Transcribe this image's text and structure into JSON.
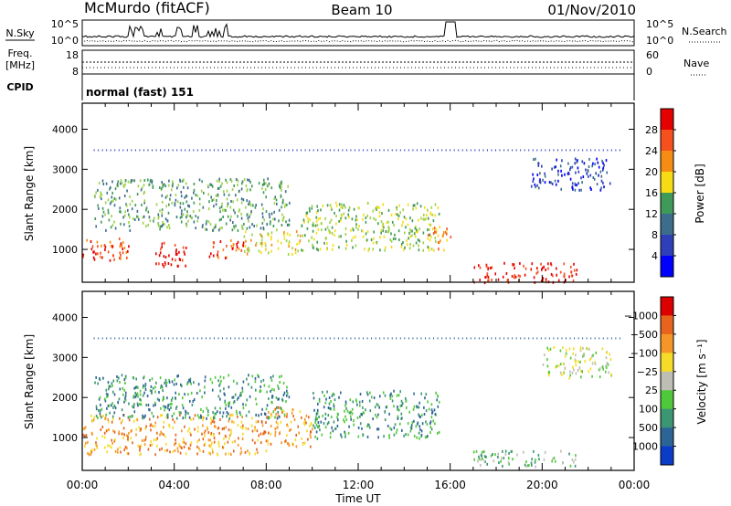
{
  "header": {
    "title": "McMurdo (fitACF)",
    "beam": "Beam 10",
    "date": "01/Nov/2010"
  },
  "top_panels": {
    "nsky_label": "N.Sky",
    "nsearch_label": "N.Search",
    "noise_ticks": [
      "10^5",
      "10^0"
    ],
    "freq_label": "Freq.",
    "freq_unit": "[MHz]",
    "freq_ticks": [
      "18",
      "8"
    ],
    "nave_label": "Nave",
    "nave_ticks": [
      "60",
      "0"
    ],
    "cpid_label": "CPID",
    "cpid_value": "normal (fast) 151"
  },
  "colors": {
    "power_scale": [
      "#0000ff",
      "#2f3fb8",
      "#3c6e8c",
      "#3f9a5a",
      "#9dd24a",
      "#f5dc14",
      "#f58c14",
      "#f5501e",
      "#e60000"
    ],
    "velocity_scale": [
      "#0a3cc8",
      "#2d6496",
      "#3c9673",
      "#50c83c",
      "#bebeb4",
      "#f5dc28",
      "#f59628",
      "#e6641e",
      "#dc0000"
    ]
  },
  "chart_data": [
    {
      "type": "heatmap",
      "quantity": "Power",
      "ylabel": "Slant Range [km]",
      "ylim": [
        180,
        4650
      ],
      "yticks": [
        1000,
        2000,
        3000,
        4000
      ],
      "xlim": [
        0,
        24
      ],
      "xticks": [
        "00:00",
        "04:00",
        "08:00",
        "12:00",
        "16:00",
        "20:00",
        "00:00"
      ],
      "colorbar_label": "Power [dB]",
      "colorbar_ticks": [
        "4",
        "8",
        "12",
        "16",
        "20",
        "24",
        "28"
      ],
      "scatter_regions": [
        {
          "t0": 0.0,
          "t1": 2.0,
          "r0": 700,
          "r1": 1300,
          "level": 7
        },
        {
          "t0": 3.0,
          "t1": 4.5,
          "r0": 600,
          "r1": 1200,
          "level": 8
        },
        {
          "t0": 5.5,
          "t1": 7.0,
          "r0": 800,
          "r1": 1300,
          "level": 7
        },
        {
          "t0": 7.0,
          "t1": 9.5,
          "r0": 900,
          "r1": 1500,
          "level": 5
        },
        {
          "t0": 9.5,
          "t1": 15.5,
          "r0": 1000,
          "r1": 2200,
          "level": 4
        },
        {
          "t0": 15.0,
          "t1": 16.0,
          "r0": 1000,
          "r1": 1600,
          "level": 6
        },
        {
          "t0": 17.0,
          "t1": 21.5,
          "r0": 200,
          "r1": 700,
          "level": 8
        },
        {
          "t0": 19.5,
          "t1": 23.0,
          "r0": 2500,
          "r1": 3300,
          "level": 1
        },
        {
          "t0": 0.5,
          "t1": 9.0,
          "r0": 1500,
          "r1": 2800,
          "level": 3
        }
      ]
    },
    {
      "type": "heatmap",
      "quantity": "Velocity",
      "ylabel": "Slant Range [km]",
      "ylim": [
        180,
        4650
      ],
      "yticks": [
        1000,
        2000,
        3000,
        4000
      ],
      "xlim": [
        0,
        24
      ],
      "xticks": [
        "00:00",
        "04:00",
        "08:00",
        "12:00",
        "16:00",
        "20:00",
        "00:00"
      ],
      "xlabel": "Time UT",
      "colorbar_label": "Velocity [m s⁻¹]",
      "colorbar_ticks": [
        "1000",
        "500",
        "100",
        "25",
        "−25",
        "−100",
        "−500",
        "−1000"
      ],
      "scatter_regions": [
        {
          "t0": 0.0,
          "t1": 8.0,
          "r0": 600,
          "r1": 1600,
          "level": 6
        },
        {
          "t0": 8.0,
          "t1": 10.0,
          "r0": 800,
          "r1": 1800,
          "level": 6
        },
        {
          "t0": 10.0,
          "t1": 15.5,
          "r0": 1000,
          "r1": 2200,
          "level": 2
        },
        {
          "t0": 17.0,
          "t1": 21.5,
          "r0": 300,
          "r1": 700,
          "level": 3
        },
        {
          "t0": 20.0,
          "t1": 23.0,
          "r0": 2500,
          "r1": 3300,
          "level": 4
        },
        {
          "t0": 0.5,
          "t1": 9.0,
          "r0": 1500,
          "r1": 2600,
          "level": 2
        }
      ]
    }
  ]
}
